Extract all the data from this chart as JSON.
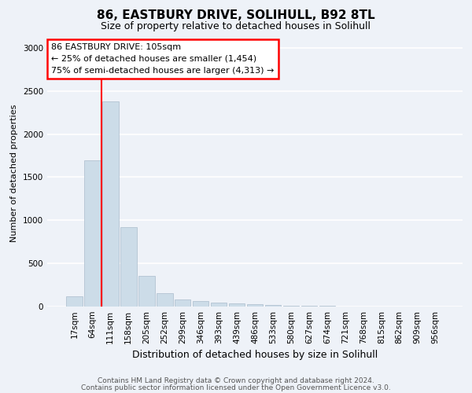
{
  "title1": "86, EASTBURY DRIVE, SOLIHULL, B92 8TL",
  "title2": "Size of property relative to detached houses in Solihull",
  "xlabel": "Distribution of detached houses by size in Solihull",
  "ylabel": "Number of detached properties",
  "bin_labels": [
    "17sqm",
    "64sqm",
    "111sqm",
    "158sqm",
    "205sqm",
    "252sqm",
    "299sqm",
    "346sqm",
    "393sqm",
    "439sqm",
    "486sqm",
    "533sqm",
    "580sqm",
    "627sqm",
    "674sqm",
    "721sqm",
    "768sqm",
    "815sqm",
    "862sqm",
    "909sqm",
    "956sqm"
  ],
  "bar_values": [
    115,
    1700,
    2380,
    920,
    360,
    155,
    80,
    60,
    45,
    35,
    25,
    15,
    10,
    8,
    5,
    4,
    3,
    2,
    1,
    1,
    1
  ],
  "bar_color": "#ccdce8",
  "bar_edge_color": "#aabccc",
  "red_line_bin": 2,
  "annotation_text": "86 EASTBURY DRIVE: 105sqm\n← 25% of detached houses are smaller (1,454)\n75% of semi-detached houses are larger (4,313) →",
  "annotation_box_color": "white",
  "annotation_box_edge": "red",
  "red_line_color": "red",
  "ylim": [
    0,
    3100
  ],
  "yticks": [
    0,
    500,
    1000,
    1500,
    2000,
    2500,
    3000
  ],
  "footer1": "Contains HM Land Registry data © Crown copyright and database right 2024.",
  "footer2": "Contains public sector information licensed under the Open Government Licence v3.0.",
  "bg_color": "#eef2f8",
  "plot_bg_color": "#eef2f8",
  "title1_fontsize": 11,
  "title2_fontsize": 9,
  "ylabel_fontsize": 8,
  "xlabel_fontsize": 9,
  "tick_fontsize": 7.5,
  "footer_fontsize": 6.5
}
